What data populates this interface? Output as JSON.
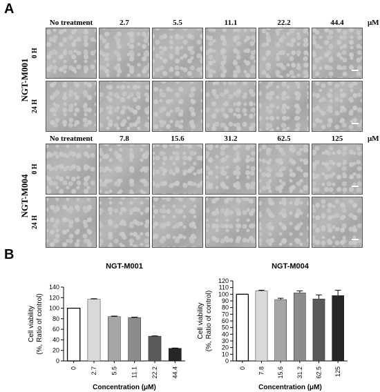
{
  "panels": {
    "a_label": "A",
    "b_label": "B"
  },
  "micrograph_panel": {
    "unit": "μM",
    "groups": [
      {
        "name": "NGT-M001",
        "columns": [
          "No treatment",
          "2.7",
          "5.5",
          "11.1",
          "22.2",
          "44.4"
        ],
        "rows": [
          "0 H",
          "24 H"
        ]
      },
      {
        "name": "NGT-M004",
        "columns": [
          "No treatment",
          "7.8",
          "15.6",
          "31.2",
          "62.5",
          "125"
        ],
        "rows": [
          "0 H",
          "24 H"
        ]
      }
    ]
  },
  "chart_data": [
    {
      "type": "bar",
      "title": "NGT-M001",
      "xlabel": "Concentration (μM)",
      "ylabel": "Cell viability (%, Ratio of control)",
      "ylabel_lines": [
        "Cell viability",
        "(%, Ratio of control)"
      ],
      "categories": [
        "0",
        "2.7",
        "5.5",
        "11.1",
        "22.2",
        "44.4"
      ],
      "values": [
        100,
        117,
        84,
        82,
        47,
        24
      ],
      "errors": [
        0,
        1,
        1,
        1,
        0.5,
        0.5
      ],
      "colors": [
        "#ffffff",
        "#d9d9d9",
        "#a6a6a6",
        "#8c8c8c",
        "#595959",
        "#262626"
      ],
      "ylim": [
        0,
        140
      ],
      "yticks": [
        "0",
        "20",
        "40",
        "60",
        "80",
        "100",
        "120",
        "140"
      ]
    },
    {
      "type": "bar",
      "title": "NGT-M004",
      "xlabel": "Concentration (μM)",
      "ylabel": "Cell viability (%, Ratio of control)",
      "ylabel_lines": [
        "Cell viability",
        "(%, Ratio of control)"
      ],
      "categories": [
        "0",
        "7.8",
        "15.6",
        "31.2",
        "62.5",
        "125"
      ],
      "values": [
        100,
        105,
        92,
        102,
        93,
        98
      ],
      "errors": [
        0,
        1,
        2,
        3,
        6,
        8
      ],
      "colors": [
        "#ffffff",
        "#d9d9d9",
        "#a6a6a6",
        "#8c8c8c",
        "#595959",
        "#262626"
      ],
      "ylim": [
        0,
        120
      ],
      "yticks": [
        "0",
        "10",
        "20",
        "30",
        "40",
        "50",
        "60",
        "70",
        "80",
        "90",
        "100",
        "110",
        "120"
      ]
    }
  ]
}
